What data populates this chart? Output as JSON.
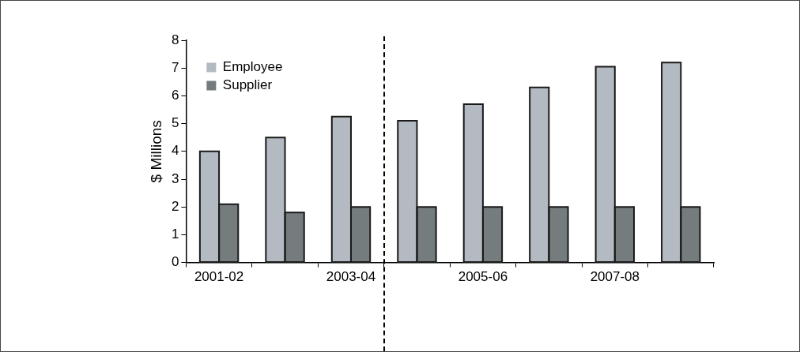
{
  "chart_data": {
    "type": "bar",
    "ylabel": "$ Millions",
    "categories": [
      "2001-02",
      null,
      "2003-04",
      null,
      "2005-06",
      null,
      "2007-08",
      null
    ],
    "series": [
      {
        "name": "Employee",
        "color": "#b4bac2",
        "values": [
          4.0,
          4.5,
          5.25,
          5.1,
          5.7,
          6.3,
          7.05,
          7.2
        ]
      },
      {
        "name": "Supplier",
        "color": "#757c7e",
        "values": [
          2.1,
          1.8,
          2.0,
          2.0,
          2.0,
          2.0,
          2.0,
          2.0
        ]
      }
    ],
    "ylim": [
      0,
      8
    ],
    "yticks": [
      0,
      1,
      2,
      3,
      4,
      5,
      6,
      7,
      8
    ],
    "legend": "top left",
    "grid": false
  }
}
